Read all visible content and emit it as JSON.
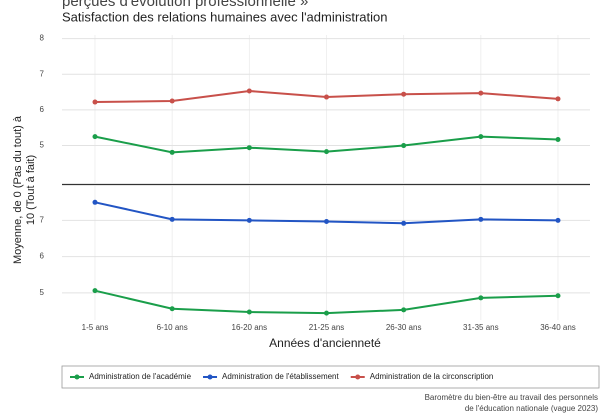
{
  "chart_data": {
    "type": "line",
    "subtitle_cut": "perçues d'évolution professionnelle »",
    "title": "Satisfaction des relations humaines avec l'administration",
    "y_label": [
      "Moyenne, de 0 (Pas du tout) à",
      "10 (Tout à fait)"
    ],
    "x_label": "Années d'ancienneté",
    "categories": [
      "1-5 ans",
      "6-10 ans",
      "16-20 ans",
      "21-25 ans",
      "26-30 ans",
      "31-35 ans",
      "36-40 ans"
    ],
    "legend": [
      {
        "name": "Administration de l'académie",
        "color": "#1a9e4a"
      },
      {
        "name": "Administration de l'établissement",
        "color": "#2255c4"
      },
      {
        "name": "Administration de la circonscription",
        "color": "#c8504a"
      }
    ],
    "grid": true,
    "panels": [
      {
        "ylim": [
          3.95,
          8.1
        ],
        "yticks": [
          5,
          6,
          7,
          8
        ],
        "series": [
          {
            "name": "Administration de la circonscription",
            "values": [
              6.22,
              6.25,
              6.53,
              6.36,
              6.44,
              6.47,
              6.31
            ]
          },
          {
            "name": "Administration de l'académie",
            "values": [
              5.25,
              4.81,
              4.94,
              4.83,
              5.0,
              5.25,
              5.17
            ]
          }
        ]
      },
      {
        "ylim": [
          4.25,
          7.95
        ],
        "yticks": [
          5,
          6,
          7
        ],
        "series": [
          {
            "name": "Administration de l'établissement",
            "values": [
              7.5,
              7.03,
              7.0,
              6.97,
              6.92,
              7.03,
              7.0
            ]
          },
          {
            "name": "Administration de l'académie",
            "values": [
              5.06,
              4.56,
              4.47,
              4.44,
              4.53,
              4.86,
              4.92
            ]
          }
        ]
      }
    ],
    "caption": [
      "Baromètre du bien-être au travail des personnels",
      "de l'éducation nationale (vague 2023)"
    ]
  }
}
